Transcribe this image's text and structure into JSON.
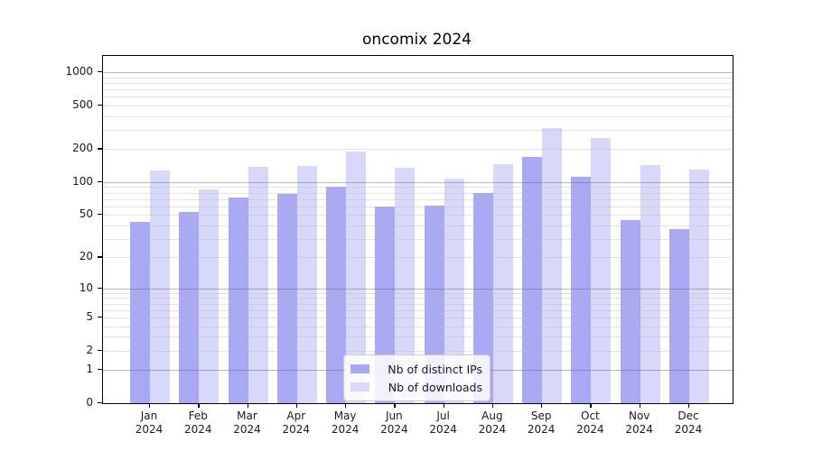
{
  "chart_data": {
    "type": "bar",
    "title": "oncomix 2024",
    "categories": [
      "Jan",
      "Feb",
      "Mar",
      "Apr",
      "May",
      "Jun",
      "Jul",
      "Aug",
      "Sep",
      "Oct",
      "Nov",
      "Dec"
    ],
    "year_label": "2024",
    "series": [
      {
        "name": "Nb of distinct IPs",
        "key": "distinct-ips",
        "color": "#a8a8f4",
        "values": [
          43,
          53,
          72,
          78,
          90,
          60,
          61,
          80,
          170,
          111,
          45,
          37
        ]
      },
      {
        "name": "Nb of downloads",
        "key": "downloads",
        "color": "#d8d8fa",
        "values": [
          129,
          85,
          138,
          140,
          190,
          136,
          108,
          145,
          313,
          251,
          143,
          130
        ]
      }
    ],
    "yticks": [
      0,
      1,
      2,
      5,
      10,
      20,
      50,
      100,
      200,
      500,
      1000
    ],
    "yscale": "log10(1+y)",
    "ylim": [
      0,
      1400
    ],
    "grid": true,
    "legend_position": "inside-bottom-center",
    "colors": {
      "major_grid": "#b4b4b4",
      "minor_grid": "#dedede",
      "axis": "#000000",
      "text": "#1a1a1a"
    }
  }
}
